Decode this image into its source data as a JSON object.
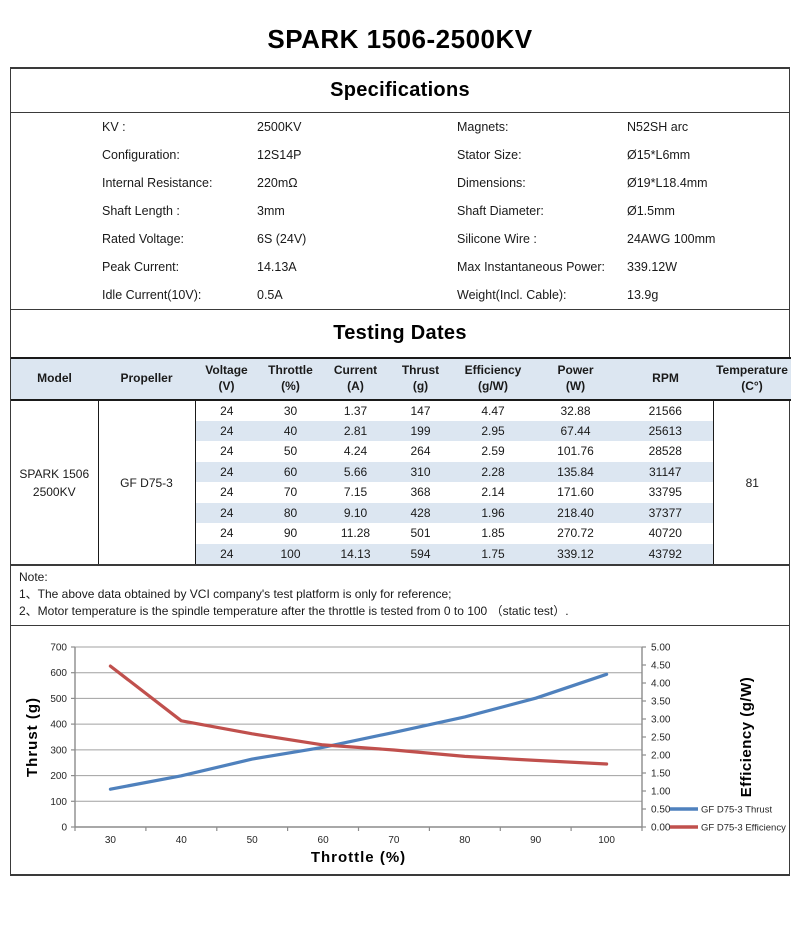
{
  "page_title": "SPARK 1506-2500KV",
  "specifications": {
    "title": "Specifications",
    "left": [
      {
        "label": "KV :",
        "value": "2500KV"
      },
      {
        "label": "Configuration:",
        "value": "12S14P"
      },
      {
        "label": "Internal Resistance:",
        "value": "220mΩ"
      },
      {
        "label": "Shaft Length :",
        "value": "3mm"
      },
      {
        "label": "Rated Voltage:",
        "value": "6S (24V)"
      },
      {
        "label": "Peak Current:",
        "value": "14.13A"
      },
      {
        "label": "Idle Current(10V):",
        "value": "0.5A"
      }
    ],
    "right": [
      {
        "label": "Magnets:",
        "value": "N52SH arc"
      },
      {
        "label": "Stator Size:",
        "value": "Ø15*L6mm"
      },
      {
        "label": "Dimensions:",
        "value": "Ø19*L18.4mm"
      },
      {
        "label": "Shaft Diameter:",
        "value": "Ø1.5mm"
      },
      {
        "label": "Silicone Wire :",
        "value": "24AWG 100mm"
      },
      {
        "label": "Max Instantaneous Power:",
        "value": "339.12W"
      },
      {
        "label": "Weight(Incl. Cable):",
        "value": "13.9g"
      }
    ]
  },
  "testing": {
    "title": "Testing Dates",
    "columns": [
      {
        "l1": "Model",
        "l2": ""
      },
      {
        "l1": "Propeller",
        "l2": ""
      },
      {
        "l1": "Voltage",
        "l2": "(V)"
      },
      {
        "l1": "Throttle",
        "l2": "(%)"
      },
      {
        "l1": "Current",
        "l2": "(A)"
      },
      {
        "l1": "Thrust",
        "l2": "(g)"
      },
      {
        "l1": "Efficiency",
        "l2": "(g/W)"
      },
      {
        "l1": "Power",
        "l2": "(W)"
      },
      {
        "l1": "RPM",
        "l2": ""
      },
      {
        "l1": "Temperature",
        "l2": "(C°)"
      }
    ],
    "model_line1": "SPARK 1506",
    "model_line2": "2500KV",
    "propeller": "GF D75-3",
    "temperature": "81",
    "rows": [
      [
        "24",
        "30",
        "1.37",
        "147",
        "4.47",
        "32.88",
        "21566"
      ],
      [
        "24",
        "40",
        "2.81",
        "199",
        "2.95",
        "67.44",
        "25613"
      ],
      [
        "24",
        "50",
        "4.24",
        "264",
        "2.59",
        "101.76",
        "28528"
      ],
      [
        "24",
        "60",
        "5.66",
        "310",
        "2.28",
        "135.84",
        "31147"
      ],
      [
        "24",
        "70",
        "7.15",
        "368",
        "2.14",
        "171.60",
        "33795"
      ],
      [
        "24",
        "80",
        "9.10",
        "428",
        "1.96",
        "218.40",
        "37377"
      ],
      [
        "24",
        "90",
        "11.28",
        "501",
        "1.85",
        "270.72",
        "40720"
      ],
      [
        "24",
        "100",
        "14.13",
        "594",
        "1.75",
        "339.12",
        "43792"
      ]
    ]
  },
  "note": {
    "title": "Note:",
    "lines": [
      "1、The above data obtained by VCI company's test platform is only for reference;",
      "2、Motor temperature is the spindle temperature after the throttle is tested from 0 to 100 （static test）."
    ]
  },
  "chart_data": {
    "type": "line",
    "x": [
      30,
      40,
      50,
      60,
      70,
      80,
      90,
      100
    ],
    "series": [
      {
        "name": "GF D75-3 Thrust",
        "axis": "left",
        "color": "#4f81bd",
        "values": [
          147,
          199,
          264,
          310,
          368,
          428,
          501,
          594
        ]
      },
      {
        "name": "GF D75-3 Efficiency",
        "axis": "right",
        "color": "#c0504d",
        "values": [
          4.47,
          2.95,
          2.59,
          2.28,
          2.14,
          1.96,
          1.85,
          1.75
        ]
      }
    ],
    "xlabel": "Throttle (%)",
    "ylabel_left": "Thrust (g)",
    "ylabel_right": "Efficiency (g/W)",
    "ylim_left": [
      0,
      700
    ],
    "ystep_left": 100,
    "ylim_right": [
      0,
      5
    ],
    "ystep_right": 0.5,
    "grid": "horizontal-left-axis",
    "legend_position": "right-bottom"
  },
  "colors": {
    "table_header_bg": "#dce6f1",
    "row_alt_bg": "#dce6f1",
    "thrust_line": "#4f81bd",
    "efficiency_line": "#c0504d",
    "grid_line": "#a0a0a0",
    "axis_line": "#8c8c8c"
  }
}
